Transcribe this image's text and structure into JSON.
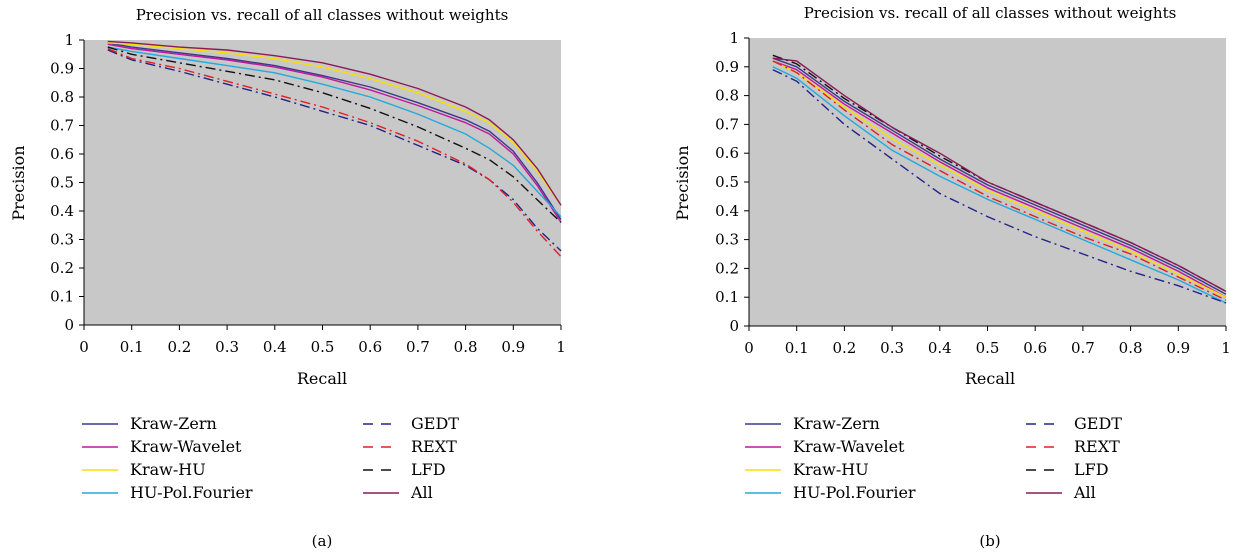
{
  "chart_data": [
    {
      "type": "line",
      "title": "Precision vs. recall of all classes without weights",
      "xlabel": "Recall",
      "ylabel": "Precision",
      "caption": "(a)",
      "xlim": [
        0,
        1
      ],
      "ylim": [
        0,
        1
      ],
      "xticks": [
        "0",
        "0.1",
        "0.2",
        "0.3",
        "0.4",
        "0.5",
        "0.6",
        "0.7",
        "0.8",
        "0.9",
        "1"
      ],
      "yticks": [
        "0",
        "0.1",
        "0.2",
        "0.3",
        "0.4",
        "0.5",
        "0.6",
        "0.7",
        "0.8",
        "0.9",
        "1"
      ],
      "grid": false,
      "legend": "bottom",
      "x": [
        0.05,
        0.1,
        0.2,
        0.3,
        0.4,
        0.5,
        0.6,
        0.7,
        0.8,
        0.85,
        0.9,
        0.95,
        1.0
      ],
      "series": [
        {
          "name": "Kraw-Zern",
          "color": "#3a3a8c",
          "dash": "solid",
          "values": [
            0.99,
            0.975,
            0.955,
            0.935,
            0.91,
            0.875,
            0.835,
            0.78,
            0.72,
            0.68,
            0.61,
            0.5,
            0.37
          ]
        },
        {
          "name": "Kraw-Wavelet",
          "color": "#c0179c",
          "dash": "solid",
          "values": [
            0.985,
            0.97,
            0.95,
            0.93,
            0.905,
            0.87,
            0.825,
            0.77,
            0.71,
            0.67,
            0.6,
            0.49,
            0.36
          ]
        },
        {
          "name": "Kraw-HU",
          "color": "#f5e000",
          "dash": "solid",
          "values": [
            0.99,
            0.985,
            0.97,
            0.955,
            0.935,
            0.905,
            0.865,
            0.815,
            0.75,
            0.71,
            0.64,
            0.54,
            0.42
          ]
        },
        {
          "name": "HU-Pol.Fourier",
          "color": "#22aadd",
          "dash": "solid",
          "values": [
            0.975,
            0.96,
            0.935,
            0.91,
            0.885,
            0.845,
            0.8,
            0.74,
            0.67,
            0.62,
            0.56,
            0.47,
            0.38
          ]
        },
        {
          "name": "GEDT",
          "color": "#23238a",
          "dash": "dashdot",
          "values": [
            0.965,
            0.93,
            0.89,
            0.845,
            0.8,
            0.75,
            0.7,
            0.63,
            0.56,
            0.51,
            0.44,
            0.34,
            0.26
          ]
        },
        {
          "name": "REXT",
          "color": "#e02020",
          "dash": "dashdot",
          "values": [
            0.97,
            0.935,
            0.9,
            0.855,
            0.81,
            0.765,
            0.71,
            0.645,
            0.565,
            0.51,
            0.43,
            0.33,
            0.24
          ]
        },
        {
          "name": "LFD",
          "color": "#111111",
          "dash": "dashdot",
          "values": [
            0.975,
            0.95,
            0.92,
            0.89,
            0.86,
            0.815,
            0.76,
            0.695,
            0.62,
            0.58,
            0.52,
            0.44,
            0.36
          ]
        },
        {
          "name": "All",
          "color": "#8c1a5a",
          "dash": "solid",
          "values": [
            0.995,
            0.99,
            0.975,
            0.965,
            0.945,
            0.92,
            0.88,
            0.83,
            0.765,
            0.72,
            0.65,
            0.55,
            0.42
          ]
        }
      ]
    },
    {
      "type": "line",
      "title": "Precision vs. recall of all classes without weights",
      "xlabel": "Recall",
      "ylabel": "Precision",
      "caption": "(b)",
      "xlim": [
        0,
        1
      ],
      "ylim": [
        0,
        1
      ],
      "xticks": [
        "0",
        "0.1",
        "0.2",
        "0.3",
        "0.4",
        "0.5",
        "0.6",
        "0.7",
        "0.8",
        "0.9",
        "1"
      ],
      "yticks": [
        "0",
        "0.1",
        "0.2",
        "0.3",
        "0.4",
        "0.5",
        "0.6",
        "0.7",
        "0.8",
        "0.9",
        "1"
      ],
      "grid": false,
      "legend": "bottom",
      "x": [
        0.05,
        0.1,
        0.2,
        0.3,
        0.4,
        0.5,
        0.6,
        0.7,
        0.8,
        0.9,
        1.0
      ],
      "series": [
        {
          "name": "Kraw-Zern",
          "color": "#3a3a8c",
          "dash": "solid",
          "values": [
            0.93,
            0.9,
            0.78,
            0.68,
            0.58,
            0.49,
            0.42,
            0.35,
            0.28,
            0.2,
            0.11
          ]
        },
        {
          "name": "Kraw-Wavelet",
          "color": "#c0179c",
          "dash": "solid",
          "values": [
            0.92,
            0.89,
            0.77,
            0.67,
            0.57,
            0.48,
            0.41,
            0.34,
            0.27,
            0.19,
            0.1
          ]
        },
        {
          "name": "Kraw-HU",
          "color": "#f5e000",
          "dash": "solid",
          "values": [
            0.92,
            0.88,
            0.76,
            0.65,
            0.56,
            0.47,
            0.4,
            0.33,
            0.26,
            0.18,
            0.1
          ]
        },
        {
          "name": "HU-Pol.Fourier",
          "color": "#22aadd",
          "dash": "solid",
          "values": [
            0.9,
            0.86,
            0.73,
            0.61,
            0.52,
            0.44,
            0.37,
            0.3,
            0.23,
            0.16,
            0.08
          ]
        },
        {
          "name": "GEDT",
          "color": "#23238a",
          "dash": "dashdot",
          "values": [
            0.89,
            0.85,
            0.7,
            0.58,
            0.46,
            0.38,
            0.31,
            0.25,
            0.19,
            0.14,
            0.08
          ]
        },
        {
          "name": "REXT",
          "color": "#e02020",
          "dash": "dashdot",
          "values": [
            0.92,
            0.88,
            0.75,
            0.63,
            0.54,
            0.45,
            0.38,
            0.31,
            0.25,
            0.17,
            0.09
          ]
        },
        {
          "name": "LFD",
          "color": "#111111",
          "dash": "dashdot",
          "values": [
            0.94,
            0.91,
            0.79,
            0.69,
            0.59,
            0.5,
            0.43,
            0.36,
            0.29,
            0.21,
            0.12
          ]
        },
        {
          "name": "All",
          "color": "#8c1a5a",
          "dash": "solid",
          "values": [
            0.93,
            0.92,
            0.8,
            0.69,
            0.6,
            0.5,
            0.43,
            0.36,
            0.29,
            0.21,
            0.12
          ]
        }
      ]
    }
  ]
}
